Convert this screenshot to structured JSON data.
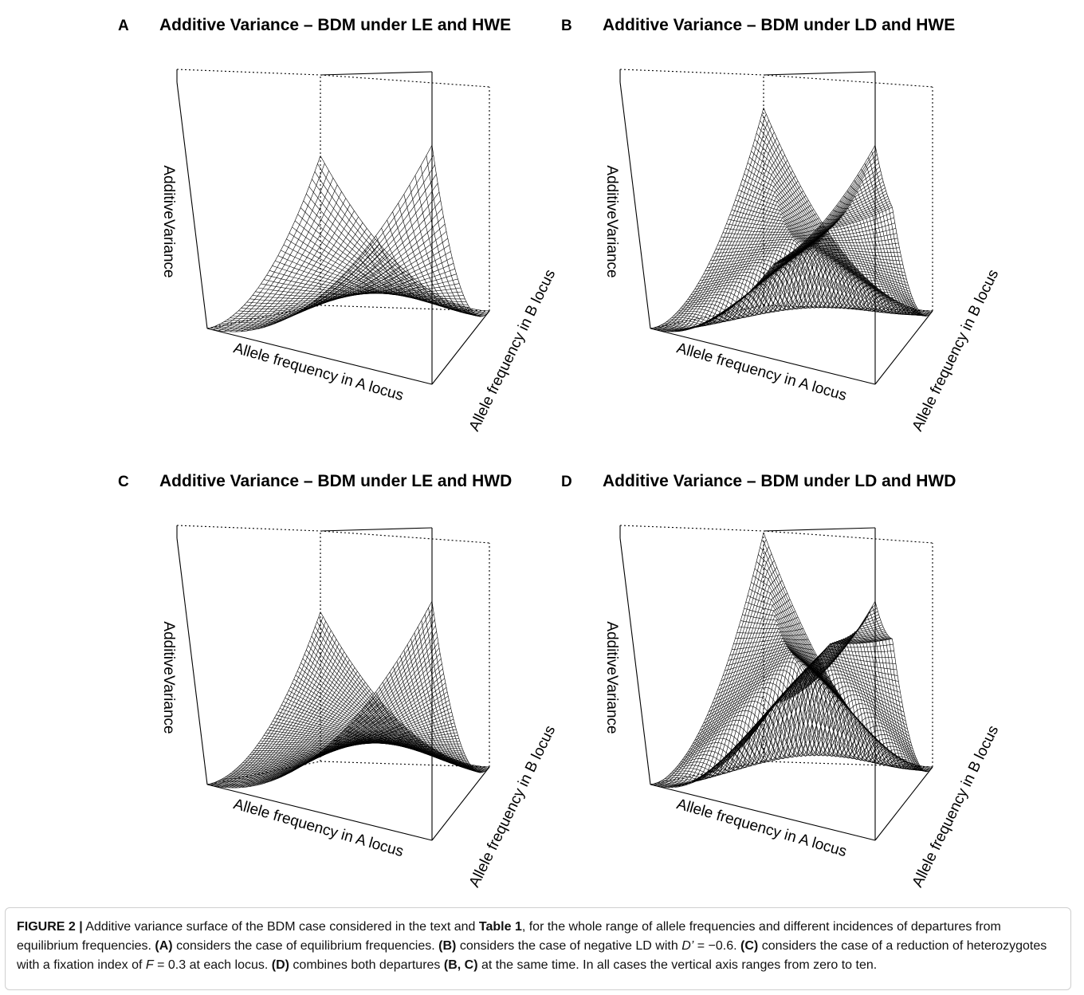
{
  "figure": {
    "panels": [
      {
        "letter": "A",
        "title": "Additive Variance – BDM under LE and HWE"
      },
      {
        "letter": "B",
        "title": "Additive Variance – BDM under LD and HWE"
      },
      {
        "letter": "C",
        "title": "Additive Variance – BDM under LE and HWD"
      },
      {
        "letter": "D",
        "title": "Additive Variance – BDM under LD and HWD"
      }
    ],
    "axis_labels": {
      "x": "Allele frequency in A locus",
      "y": "Allele frequency in B locus",
      "z": "AdditiveVariance"
    }
  },
  "chart_data": [
    {
      "type": "surface",
      "panel": "A",
      "title": "Additive Variance – BDM under LE and HWE",
      "xlabel": "Allele frequency in A locus",
      "ylabel": "Allele frequency in B locus",
      "zlabel": "AdditiveVariance",
      "xlim": [
        0,
        1
      ],
      "ylim": [
        0,
        1
      ],
      "zlim": [
        0,
        10
      ],
      "D_prime": 0,
      "F": 0,
      "grid": 40
    },
    {
      "type": "surface",
      "panel": "B",
      "title": "Additive Variance – BDM under LD and HWE",
      "xlabel": "Allele frequency in A locus",
      "ylabel": "Allele frequency in B locus",
      "zlabel": "AdditiveVariance",
      "xlim": [
        0,
        1
      ],
      "ylim": [
        0,
        1
      ],
      "zlim": [
        0,
        10
      ],
      "D_prime": -0.6,
      "F": 0,
      "grid": 64
    },
    {
      "type": "surface",
      "panel": "C",
      "title": "Additive Variance – BDM under LE and HWD",
      "xlabel": "Allele frequency in A locus",
      "ylabel": "Allele frequency in B locus",
      "zlabel": "AdditiveVariance",
      "xlim": [
        0,
        1
      ],
      "ylim": [
        0,
        1
      ],
      "zlim": [
        0,
        10
      ],
      "D_prime": 0,
      "F": 0.3,
      "grid": 64
    },
    {
      "type": "surface",
      "panel": "D",
      "title": "Additive Variance – BDM under LD and HWD",
      "xlabel": "Allele frequency in A locus",
      "ylabel": "Allele frequency in B locus",
      "zlabel": "AdditiveVariance",
      "xlim": [
        0,
        1
      ],
      "ylim": [
        0,
        1
      ],
      "zlim": [
        0,
        10
      ],
      "D_prime": -0.6,
      "F": 0.3,
      "grid": 64
    }
  ],
  "caption": {
    "label": "FIGURE 2 |",
    "t1": " Additive variance surface of the BDM case considered in the text and ",
    "table_ref": "Table 1",
    "t2": ", for the whole range of allele frequencies and different incidences of departures from equilibrium frequencies. ",
    "a": "(A)",
    "t3": " considers the case of equilibrium frequencies. ",
    "b": "(B)",
    "t4": " considers the case of negative LD with ",
    "d_sym": "D’",
    "t5": " = −0.6. ",
    "c": "(C)",
    "t6": " considers the case of a reduction of heterozygotes with a fixation index of ",
    "f_sym": "F",
    "t7": " = 0.3 at each locus. ",
    "d": "(D)",
    "t8": " combines both departures ",
    "bc": "(B, C)",
    "t9": " at the same time. In all cases the vertical axis ranges from zero to ten."
  }
}
